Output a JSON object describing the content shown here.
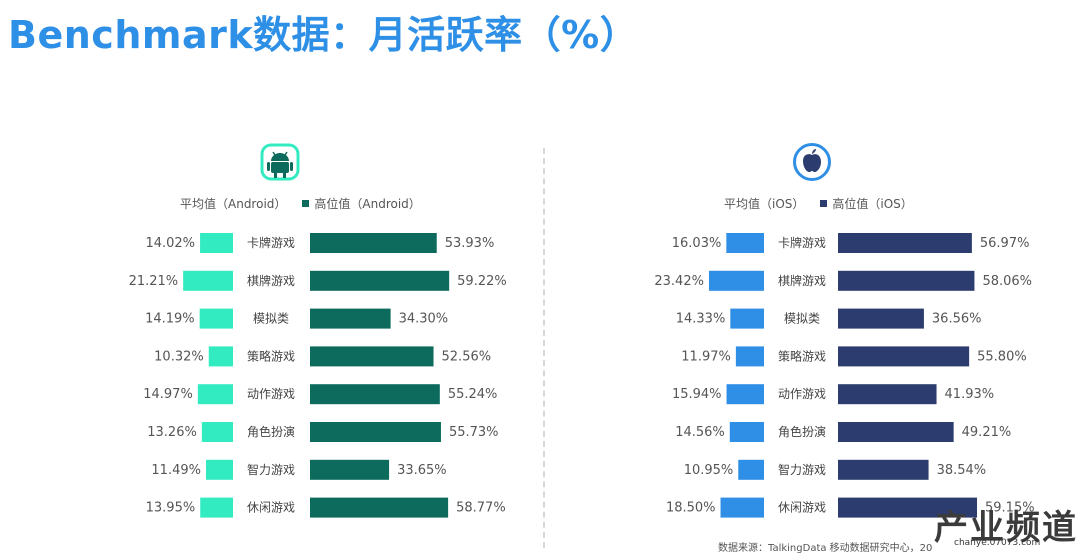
{
  "title": "Benchmark数据：月活跃率（%）",
  "colors": {
    "android_avg": "#33ebc0",
    "android_high": "#0c6b5c",
    "ios_avg": "#2f8fe6",
    "ios_high": "#2c3c6e",
    "title": "#2e8fe6"
  },
  "icons": {
    "android": "android-robot-icon",
    "ios": "apple-logo-icon"
  },
  "source_note": "数据来源：TalkingData 移动数据研究中心，20",
  "watermark": {
    "text": "产业频道",
    "url": "chanye.07073.com"
  },
  "chart_data": [
    {
      "type": "bar",
      "orientation": "horizontal-diverging",
      "platform": "Android",
      "categories": [
        "卡牌游戏",
        "棋牌游戏",
        "模拟类",
        "策略游戏",
        "动作游戏",
        "角色扮演",
        "智力游戏",
        "休闲游戏"
      ],
      "series": [
        {
          "name": "平均值（Android）",
          "values": [
            14.02,
            21.21,
            14.19,
            10.32,
            14.97,
            13.26,
            11.49,
            13.95
          ],
          "labels": [
            "14.02%",
            "21.21%",
            "14.19%",
            "10.32%",
            "14.97%",
            "13.26%",
            "11.49%",
            "13.95%"
          ]
        },
        {
          "name": "高位值（Android）",
          "values": [
            53.93,
            59.22,
            34.3,
            52.56,
            55.24,
            55.73,
            33.65,
            58.77
          ],
          "labels": [
            "53.93%",
            "59.22%",
            "34.30%",
            "52.56%",
            "55.24%",
            "55.73%",
            "33.65%",
            "58.77%"
          ]
        }
      ]
    },
    {
      "type": "bar",
      "orientation": "horizontal-diverging",
      "platform": "iOS",
      "categories": [
        "卡牌游戏",
        "棋牌游戏",
        "模拟类",
        "策略游戏",
        "动作游戏",
        "角色扮演",
        "智力游戏",
        "休闲游戏"
      ],
      "series": [
        {
          "name": "平均值（iOS）",
          "values": [
            16.03,
            23.42,
            14.33,
            11.97,
            15.94,
            14.56,
            10.95,
            18.5
          ],
          "labels": [
            "16.03%",
            "23.42%",
            "14.33%",
            "11.97%",
            "15.94%",
            "14.56%",
            "10.95%",
            "18.50%"
          ]
        },
        {
          "name": "高位值（iOS）",
          "values": [
            56.97,
            58.06,
            36.56,
            55.8,
            41.93,
            49.21,
            38.54,
            59.15
          ],
          "labels": [
            "56.97%",
            "58.06%",
            "36.56%",
            "55.80%",
            "41.93%",
            "49.21%",
            "38.54%",
            "59.15%"
          ]
        }
      ]
    }
  ]
}
